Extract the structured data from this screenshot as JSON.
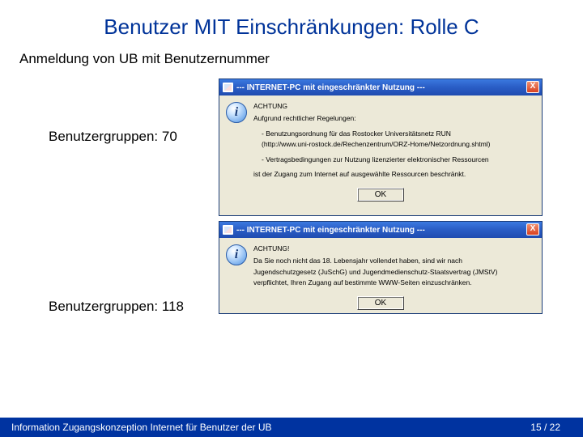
{
  "slide": {
    "title": "Benutzer MIT Einschränkungen: Rolle C",
    "subtitle": "Anmeldung von UB mit Benutzernummer",
    "title_color": "#003399"
  },
  "groups": {
    "first": "Benutzergruppen: 70",
    "second": "Benutzergruppen: 118"
  },
  "dialog1": {
    "title": "--- INTERNET-PC mit eingeschränkter Nutzung ---",
    "close": "X",
    "info_glyph": "i",
    "heading": "ACHTUNG",
    "line1": "Aufgrund rechtlicher Regelungen:",
    "bullet1": "- Benutzungsordnung für das Rostocker Universitätsnetz RUN",
    "bullet1b": "(http://www.uni-rostock.de/Rechenzentrum/ORZ-Home/Netzordnung.shtml)",
    "bullet2": "- Vertragsbedingungen zur Nutzung lizenzierter elektronischer Ressourcen",
    "line2": "ist der Zugang zum Internet auf ausgewählte Ressourcen beschränkt.",
    "ok": "OK"
  },
  "dialog2": {
    "title": "--- INTERNET-PC mit eingeschränkter Nutzung ---",
    "close": "X",
    "info_glyph": "i",
    "heading": "ACHTUNG!",
    "line1": "Da Sie noch nicht das 18. Lebensjahr vollendet haben, sind wir nach",
    "line2": "Jugendschutzgesetz (JuSchG) und Jugendmedienschutz-Staatsvertrag (JMStV)",
    "line3": "verpflichtet, Ihren Zugang auf bestimmte WWW-Seiten einzuschränken.",
    "ok": "OK"
  },
  "footer": {
    "text": "Information Zugangskonzeption Internet für Benutzer der UB",
    "page": "15 / 22",
    "bg_color": "#0033a0"
  }
}
